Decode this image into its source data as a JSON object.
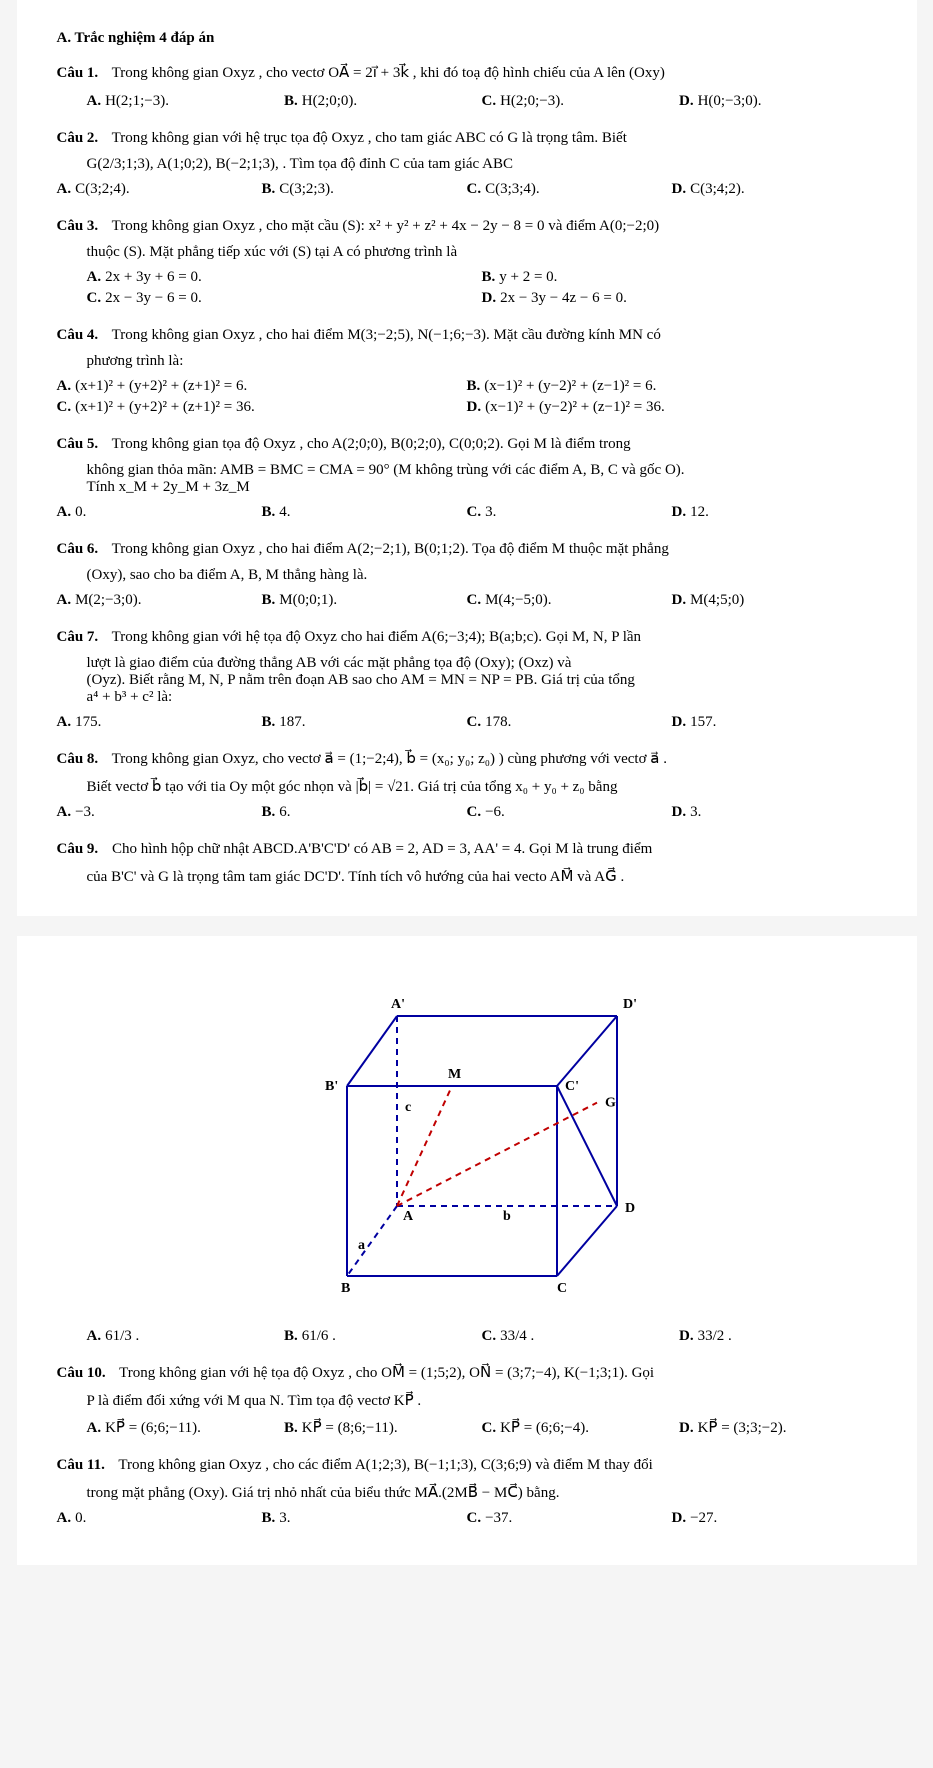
{
  "section_header": "A.  Trắc nghiệm 4 đáp án",
  "questions": [
    {
      "label": "Câu 1.",
      "stem1": "Trong không gian Oxyz , cho vectơ  OA⃗ = 2i⃗ + 3k⃗ , khi đó toạ độ hình chiếu của A lên (Oxy)",
      "layout": "four",
      "opts": [
        {
          "l": "A.",
          "t": "H(2;1;−3)."
        },
        {
          "l": "B.",
          "t": "H(2;0;0)."
        },
        {
          "l": "C.",
          "t": "H(2;0;−3)."
        },
        {
          "l": "D.",
          "t": "H(0;−3;0)."
        }
      ]
    },
    {
      "label": "Câu 2.",
      "stem1": "Trong không gian với hệ trục tọa độ Oxyz , cho tam giác  ABC  có G là trọng tâm. Biết",
      "stem2": "G(2/3;1;3), A(1;0;2), B(−2;1;3), . Tìm tọa độ đỉnh C của tam giác  ABC",
      "layout": "four",
      "no_indent": true,
      "opts": [
        {
          "l": "A.",
          "t": "C(3;2;4)."
        },
        {
          "l": "B.",
          "t": "C(3;2;3)."
        },
        {
          "l": "C.",
          "t": "C(3;3;4)."
        },
        {
          "l": "D.",
          "t": "C(3;4;2)."
        }
      ]
    },
    {
      "label": "Câu 3.",
      "stem1": "Trong không gian Oxyz , cho mặt cầu (S): x² + y² + z² + 4x − 2y − 8 = 0 và điểm A(0;−2;0)",
      "stem2": "thuộc (S). Mặt phẳng tiếp xúc với (S) tại A có phương trình là",
      "layout": "two",
      "opts": [
        {
          "l": "A.",
          "t": "2x + 3y + 6 = 0."
        },
        {
          "l": "B.",
          "t": "y + 2 = 0."
        },
        {
          "l": "C.",
          "t": "2x − 3y − 6 = 0."
        },
        {
          "l": "D.",
          "t": "2x − 3y − 4z − 6 = 0."
        }
      ]
    },
    {
      "label": "Câu 4.",
      "stem1": "Trong không gian Oxyz , cho hai điểm M(3;−2;5), N(−1;6;−3). Mặt cầu đường kính MN có",
      "stem2": "phương trình là:",
      "layout": "two",
      "no_indent": true,
      "opts": [
        {
          "l": "A.",
          "t": "(x+1)² + (y+2)² + (z+1)² = 6."
        },
        {
          "l": "B.",
          "t": "(x−1)² + (y−2)² + (z−1)² = 6."
        },
        {
          "l": "C.",
          "t": "(x+1)² + (y+2)² + (z+1)² = 36."
        },
        {
          "l": "D.",
          "t": "(x−1)² + (y−2)² + (z−1)² = 36."
        }
      ]
    },
    {
      "label": "Câu 5.",
      "stem1": "Trong không gian tọa độ Oxyz , cho A(2;0;0), B(0;2;0), C(0;0;2). Gọi M là điểm trong",
      "stem2": "không gian thỏa mãn:  AMB = BMC = CMA = 90°  (M không trùng với các điểm A, B, C và gốc O).",
      "stem3": "Tính  x_M + 2y_M + 3z_M",
      "layout": "four",
      "no_indent": true,
      "opts": [
        {
          "l": "A.",
          "t": "0."
        },
        {
          "l": "B.",
          "t": "4."
        },
        {
          "l": "C.",
          "t": "3."
        },
        {
          "l": "D.",
          "t": "12."
        }
      ]
    },
    {
      "label": "Câu 6.",
      "stem1": "Trong không gian Oxyz , cho hai điểm A(2;−2;1), B(0;1;2). Tọa độ điểm M thuộc mặt phẳng",
      "stem2": "(Oxy), sao cho ba điểm A, B, M thẳng hàng là.",
      "layout": "four",
      "no_indent": true,
      "opts": [
        {
          "l": "A.",
          "t": "M(2;−3;0)."
        },
        {
          "l": "B.",
          "t": "M(0;0;1)."
        },
        {
          "l": "C.",
          "t": "M(4;−5;0)."
        },
        {
          "l": "D.",
          "t": "M(4;5;0)"
        }
      ]
    },
    {
      "label": "Câu 7.",
      "stem1": "Trong không gian với hệ tọa độ Oxyz cho hai điểm A(6;−3;4); B(a;b;c). Gọi M, N, P lần",
      "stem2": "lượt                         là giao điểm của đường thẳng AB với các mặt phẳng tọa độ (Oxy); (Oxz) và",
      "stem3": "(Oyz). Biết rằng M, N, P nằm trên đoạn AB sao cho AM = MN = NP = PB. Giá trị của tổng",
      "stem4": "a⁴ + b³ + c² là:",
      "layout": "four",
      "no_indent": true,
      "opts": [
        {
          "l": "A.",
          "t": "175."
        },
        {
          "l": "B.",
          "t": "187."
        },
        {
          "l": "C.",
          "t": "178."
        },
        {
          "l": "D.",
          "t": "157."
        }
      ]
    },
    {
      "label": "Câu 8.",
      "stem1": "Trong không gian Oxyz, cho vectơ a⃗ = (1;−2;4), b⃗ = (x₀; y₀; z₀) ) cùng phương với vectơ a⃗ .",
      "stem2": "Biết vectơ b⃗ tạo với tia Oy một góc nhọn và |b⃗| = √21. Giá trị của tổng x₀ + y₀ + z₀ bằng",
      "layout": "four",
      "no_indent": true,
      "opts": [
        {
          "l": "A.",
          "t": "−3."
        },
        {
          "l": "B.",
          "t": "6."
        },
        {
          "l": "C.",
          "t": "−6."
        },
        {
          "l": "D.",
          "t": "3."
        }
      ]
    },
    {
      "label": "Câu 9.",
      "stem1": "Cho hình hộp chữ nhật ABCD.A'B'C'D' có AB = 2, AD = 3, AA' = 4. Gọi M là trung điểm",
      "stem2": "của B'C' và G là trọng tâm tam giác DC'D'. Tính tích vô hướng của hai vecto  AM⃗  và  AG⃗ ."
    }
  ],
  "cube_figure": {
    "stroke": "#0000a0",
    "dash_red": "#c00000",
    "labels": {
      "Ap": "A'",
      "Bp": "B'",
      "Cp": "C'",
      "Dp": "D'",
      "A": "A",
      "B": "B",
      "C": "C",
      "D": "D",
      "M": "M",
      "G": "G",
      "a": "a",
      "b": "b",
      "c": "c"
    }
  },
  "q9_opts_layout": "four",
  "q9_opts": [
    {
      "l": "A.",
      "t": "61/3 ."
    },
    {
      "l": "B.",
      "t": "61/6 ."
    },
    {
      "l": "C.",
      "t": "33/4 ."
    },
    {
      "l": "D.",
      "t": "33/2 ."
    }
  ],
  "questions2": [
    {
      "label": "Câu 10.",
      "stem1": "Trong không gian với hệ tọa độ Oxyz , cho OM⃗ = (1;5;2), ON⃗ = (3;7;−4), K(−1;3;1). Gọi",
      "stem2": "P là điểm đối xứng với M qua N. Tìm tọa độ vectơ KP⃗ .",
      "layout": "four",
      "opts": [
        {
          "l": "A.",
          "t": "KP⃗ = (6;6;−11)."
        },
        {
          "l": "B.",
          "t": "KP⃗ = (8;6;−11)."
        },
        {
          "l": "C.",
          "t": "KP⃗ = (6;6;−4)."
        },
        {
          "l": "D.",
          "t": "KP⃗ = (3;3;−2)."
        }
      ]
    },
    {
      "label": "Câu 11.",
      "stem1": "Trong không gian Oxyz , cho các điểm A(1;2;3), B(−1;1;3), C(3;6;9) và điểm M thay đổi",
      "stem2": "trong mặt phẳng (Oxy). Giá trị nhỏ nhất của biểu thức  MA⃗.(2MB⃗ − MC⃗)  bằng.",
      "layout": "four",
      "no_indent": true,
      "opts": [
        {
          "l": "A.",
          "t": "0."
        },
        {
          "l": "B.",
          "t": "3."
        },
        {
          "l": "C.",
          "t": "−37."
        },
        {
          "l": "D.",
          "t": "−27."
        }
      ]
    }
  ]
}
